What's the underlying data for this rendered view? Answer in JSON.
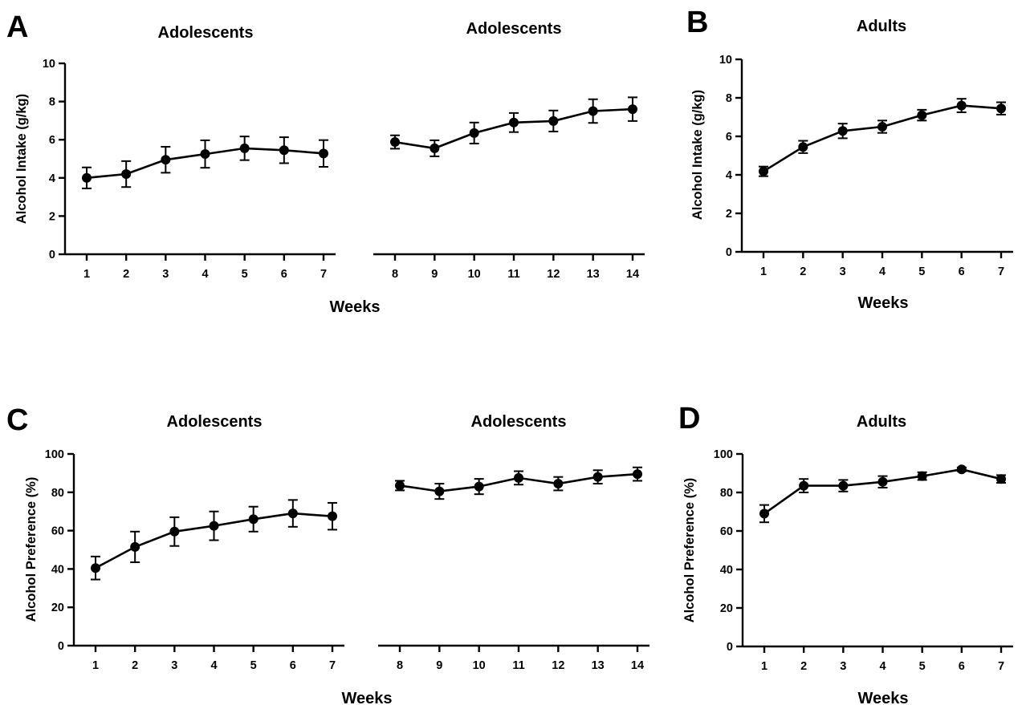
{
  "figure": {
    "panel_letters": [
      "A",
      "B",
      "C",
      "D"
    ],
    "x_axis_label": "Weeks"
  },
  "chart_data": [
    {
      "panel": "A",
      "type": "line",
      "title": "Adolescents",
      "ylabel": "Alcohol Intake (g/kg)",
      "xlabel": "Weeks",
      "ylim": [
        0,
        10
      ],
      "yticks": [
        0,
        2,
        4,
        6,
        8,
        10
      ],
      "x": [
        1,
        2,
        3,
        4,
        5,
        6,
        7
      ],
      "values": [
        4.0,
        4.2,
        4.95,
        5.25,
        5.55,
        5.45,
        5.28
      ],
      "errors": [
        0.55,
        0.68,
        0.68,
        0.72,
        0.62,
        0.68,
        0.7
      ],
      "error_bars": true,
      "color": "#000000"
    },
    {
      "panel": "A",
      "type": "line",
      "title": "Adolescents",
      "ylabel": "",
      "xlabel": "Weeks",
      "ylim": [
        0,
        10
      ],
      "yticks": [],
      "x": [
        8,
        9,
        10,
        11,
        12,
        13,
        14
      ],
      "values": [
        5.88,
        5.55,
        6.35,
        6.9,
        6.98,
        7.5,
        7.6
      ],
      "errors": [
        0.35,
        0.42,
        0.55,
        0.5,
        0.55,
        0.62,
        0.62
      ],
      "error_bars": true,
      "color": "#000000"
    },
    {
      "panel": "B",
      "type": "line",
      "title": "Adults",
      "ylabel": "Alcohol Intake (g/kg)",
      "xlabel": "Weeks",
      "ylim": [
        0,
        10
      ],
      "yticks": [
        0,
        2,
        4,
        6,
        8,
        10
      ],
      "x": [
        1,
        2,
        3,
        4,
        5,
        6,
        7
      ],
      "values": [
        4.18,
        5.45,
        6.28,
        6.5,
        7.1,
        7.6,
        7.45
      ],
      "errors": [
        0.25,
        0.32,
        0.38,
        0.32,
        0.28,
        0.35,
        0.32
      ],
      "error_bars": true,
      "color": "#000000"
    },
    {
      "panel": "C",
      "type": "line",
      "title": "Adolescents",
      "ylabel": "Alcohol Preference (%)",
      "xlabel": "Weeks",
      "ylim": [
        0,
        100
      ],
      "yticks": [
        0,
        20,
        40,
        60,
        80,
        100
      ],
      "x": [
        1,
        2,
        3,
        4,
        5,
        6,
        7
      ],
      "values": [
        40.5,
        51.5,
        59.5,
        62.5,
        66.0,
        69.0,
        67.5
      ],
      "errors": [
        6.0,
        8.0,
        7.5,
        7.5,
        6.5,
        7.0,
        7.0
      ],
      "error_bars": true,
      "color": "#000000"
    },
    {
      "panel": "C",
      "type": "line",
      "title": "Adolescents",
      "ylabel": "",
      "xlabel": "Weeks",
      "ylim": [
        0,
        100
      ],
      "yticks": [],
      "x": [
        8,
        9,
        10,
        11,
        12,
        13,
        14
      ],
      "values": [
        83.5,
        80.5,
        83.0,
        87.5,
        84.5,
        88.0,
        89.5
      ],
      "errors": [
        2.5,
        4.0,
        4.0,
        3.5,
        3.5,
        3.5,
        3.5
      ],
      "error_bars": true,
      "color": "#000000"
    },
    {
      "panel": "D",
      "type": "line",
      "title": "Adults",
      "ylabel": "Alcohol Preference (%)",
      "xlabel": "Weeks",
      "ylim": [
        0,
        100
      ],
      "yticks": [
        0,
        20,
        40,
        60,
        80,
        100
      ],
      "x": [
        1,
        2,
        3,
        4,
        5,
        6,
        7
      ],
      "values": [
        69.0,
        83.5,
        83.5,
        85.5,
        88.5,
        92.0,
        87.0
      ],
      "errors": [
        4.5,
        3.5,
        3.0,
        3.0,
        2.0,
        1.0,
        2.0
      ],
      "error_bars": true,
      "color": "#000000"
    }
  ]
}
